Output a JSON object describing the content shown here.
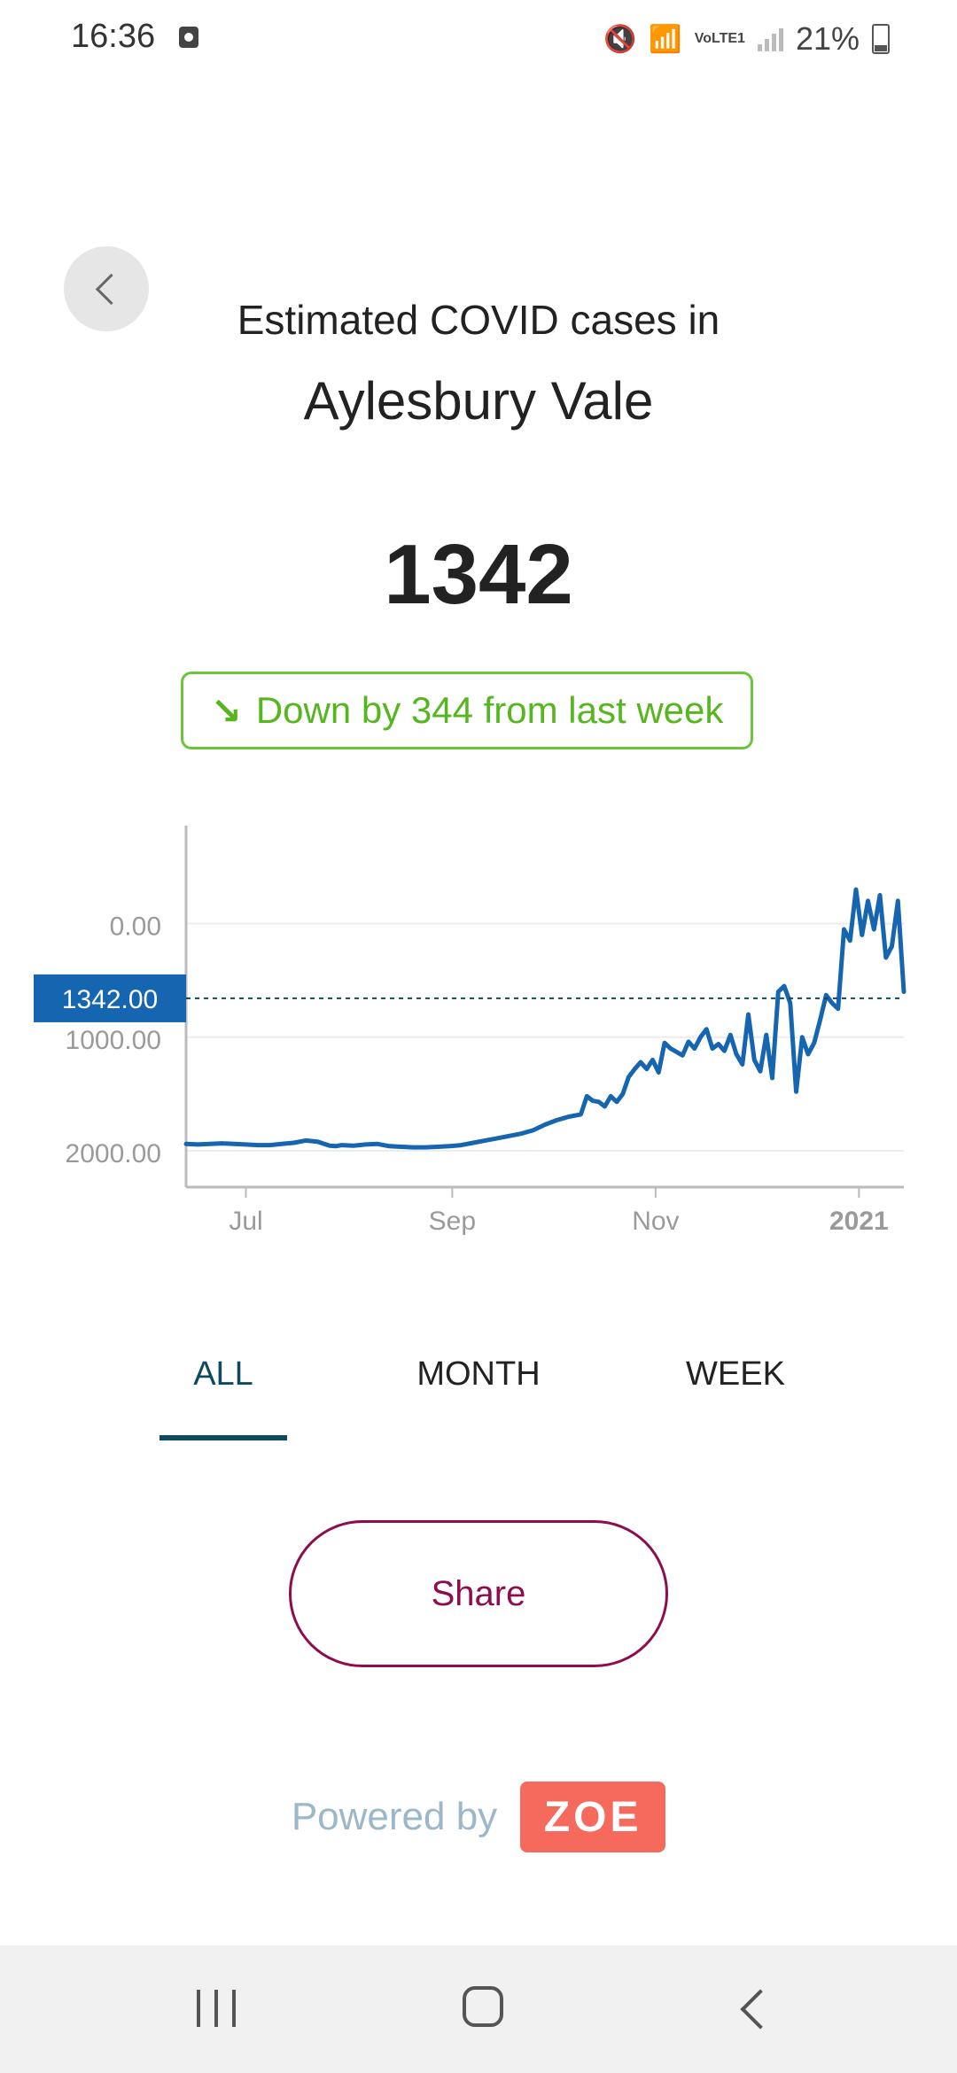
{
  "status_bar": {
    "time": "16:36",
    "lte_label": "VoLTE1",
    "battery_pct": "21%"
  },
  "header": {
    "subtitle": "Estimated COVID cases in",
    "title": "Aylesbury Vale"
  },
  "estimate": {
    "value": "1342",
    "trend_text": "Down by 344 from last week",
    "trend_color": "#57b61f"
  },
  "tabs": [
    {
      "label": "ALL",
      "selected": true
    },
    {
      "label": "MONTH",
      "selected": false
    },
    {
      "label": "WEEK",
      "selected": false
    }
  ],
  "share_label": "Share",
  "powered": {
    "text": "Powered by",
    "logo": "ZOE"
  },
  "chart_data": {
    "type": "line",
    "x_tick_labels": [
      "Jul",
      "Sep",
      "Nov",
      "2021"
    ],
    "y_tick_labels": [
      "2000.00",
      "1000.00",
      "0.00"
    ],
    "yticks": [
      0,
      1000,
      2000
    ],
    "ylim": [
      -320,
      2800
    ],
    "xlim": [
      0,
      240
    ],
    "x_tick_positions": [
      20,
      89,
      157,
      225
    ],
    "reference_line": {
      "value": 1342,
      "label": "1342.00"
    },
    "line_color": "#1565b0",
    "series": [
      {
        "x": [
          0,
          4,
          8,
          12,
          16,
          20,
          24,
          28,
          32,
          36,
          40,
          44,
          48,
          50,
          52,
          56,
          60,
          64,
          68,
          72,
          76,
          80,
          84,
          88,
          92,
          96,
          100,
          104,
          108,
          112,
          116,
          120,
          124,
          128,
          132,
          134,
          136,
          138,
          140,
          142,
          144,
          146,
          148,
          150,
          152,
          154,
          156,
          158,
          160,
          162,
          164,
          166,
          168,
          170,
          172,
          174,
          176,
          178,
          180,
          182,
          184,
          186,
          188,
          190,
          192,
          194,
          196,
          198,
          200,
          202,
          204,
          206,
          208,
          210,
          212,
          214,
          216,
          218,
          220,
          222,
          224,
          226,
          228,
          230,
          232,
          234,
          236,
          238,
          240
        ],
        "values": [
          60,
          55,
          60,
          65,
          60,
          55,
          50,
          50,
          60,
          70,
          90,
          80,
          45,
          40,
          50,
          45,
          55,
          60,
          40,
          35,
          30,
          30,
          35,
          40,
          50,
          70,
          90,
          110,
          130,
          150,
          180,
          230,
          270,
          300,
          320,
          480,
          440,
          430,
          390,
          480,
          430,
          500,
          650,
          720,
          780,
          720,
          800,
          690,
          950,
          900,
          870,
          840,
          960,
          900,
          1000,
          1070,
          900,
          940,
          880,
          1020,
          850,
          760,
          1200,
          800,
          700,
          1020,
          640,
          1400,
          1450,
          1300,
          520,
          1000,
          850,
          950,
          1150,
          1370,
          1300,
          1250,
          1950,
          1850,
          2300,
          1900,
          2200,
          1950,
          2250,
          1700,
          1800,
          2200,
          1400
        ]
      }
    ]
  }
}
